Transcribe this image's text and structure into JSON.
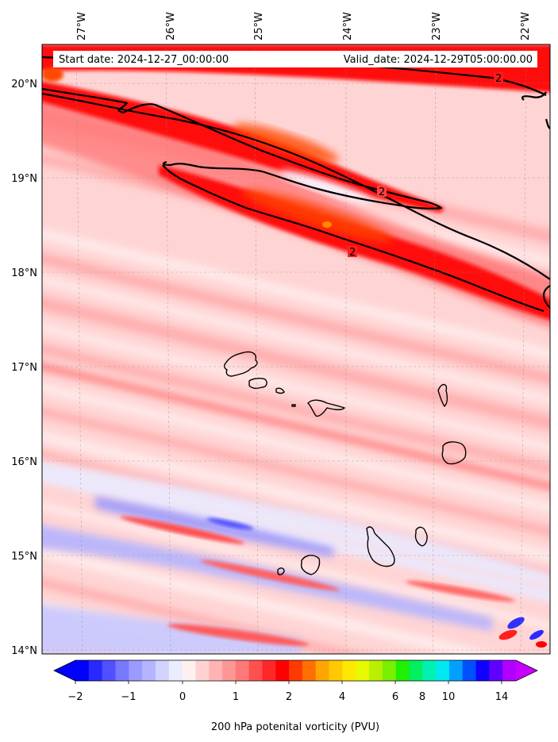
{
  "header": {
    "start_date": "Start date: 2024-12-27_00:00:00",
    "valid_date": "Valid_date: 2024-12-29T05:00:00.00"
  },
  "longitude_labels": [
    "27°W",
    "26°W",
    "25°W",
    "24°W",
    "23°W",
    "22°W"
  ],
  "latitude_labels": [
    "20°N",
    "19°N",
    "18°N",
    "17°N",
    "16°N",
    "15°N",
    "14°N"
  ],
  "contour": {
    "level": 2,
    "labels": [
      "2",
      "2",
      "2"
    ]
  },
  "colorbar": {
    "title": "200 hPa potenital vorticity (PVU)",
    "tick_labels": [
      "−2",
      "−1",
      "0",
      "1",
      "2",
      "4",
      "6",
      "8",
      "10",
      "14"
    ],
    "colors": [
      "#0000ff",
      "#2828ff",
      "#5050ff",
      "#7878ff",
      "#9a9aff",
      "#b4b4ff",
      "#d2d2ff",
      "#ececff",
      "#fff0f0",
      "#ffd2d2",
      "#ffb4b4",
      "#ff9696",
      "#ff7878",
      "#ff5050",
      "#ff2828",
      "#ff0000",
      "#ff3a00",
      "#ff7000",
      "#ffa500",
      "#ffc800",
      "#ffe800",
      "#e8f800",
      "#b8f000",
      "#78f000",
      "#20f000",
      "#00f060",
      "#00f0b0",
      "#00e8f0",
      "#00a0ff",
      "#0050ff",
      "#1000ff",
      "#6000ff",
      "#b000ff"
    ],
    "over_color": "#c800ff",
    "under_color": "#0000ff"
  },
  "field_colors": {
    "background": "#ffd4d4",
    "pale": "#ffeaea",
    "light": "#ffb0b0",
    "mid": "#ff7878",
    "strong": "#ff2a2a",
    "core": "#ff0000",
    "orange": "#ff3c00",
    "white": "#f8f0ff",
    "blue_light": "#eaeaff",
    "blue_mid": "#b4b4ff",
    "blue_strong": "#6060ff"
  }
}
